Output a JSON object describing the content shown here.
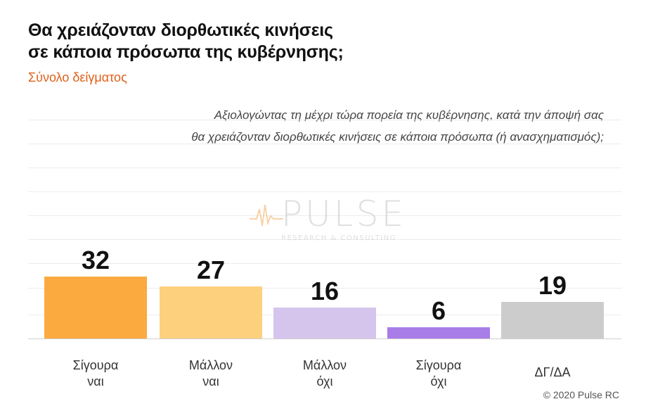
{
  "chart_data": {
    "type": "bar",
    "title_lines": [
      "Θα χρειάζονταν διορθωτικές κινήσεις",
      "σε κάποια πρόσωπα της κυβέρνησης;"
    ],
    "subtitle": "Σύνολο δείγματος",
    "question_lines": [
      "Αξιολογώντας τη μέχρι τώρα πορεία της κυβέρνησης, κατά την άποψή σας",
      "θα χρειάζονταν διορθωτικές κινήσεις σε κάποια πρόσωπα (ή ανασχηματισμός);"
    ],
    "categories": [
      [
        "Σίγουρα",
        "ναι"
      ],
      [
        "Μάλλον",
        "ναι"
      ],
      [
        "Μάλλον",
        "όχι"
      ],
      [
        "Σίγουρα",
        "όχι"
      ],
      [
        "ΔΓ/ΔΑ"
      ]
    ],
    "values": [
      32,
      27,
      16,
      6,
      19
    ],
    "colors": [
      "#fbaa3f",
      "#fdd07e",
      "#d5c5ec",
      "#a87de8",
      "#cccccc"
    ],
    "ylim": [
      0,
      100
    ],
    "legend": "none",
    "grid": true
  },
  "watermark": {
    "logo_text": "PULSE",
    "logo_subtext": "RESEARCH & CONSULTING"
  },
  "footer": {
    "copyright": "© 2020 Pulse RC"
  }
}
